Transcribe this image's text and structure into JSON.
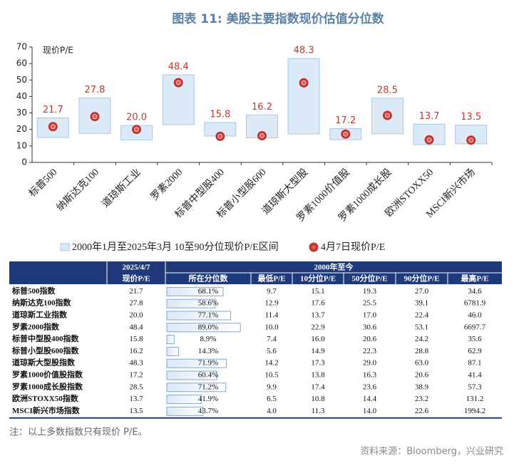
{
  "title": "图表 11: 美股主要指数现价估值分位数",
  "chart_data": {
    "type": "range_bar",
    "y_label": "现价P/E",
    "categories": [
      "标普500",
      "纳斯达克100",
      "道琼斯工业",
      "罗素2000",
      "标普中型股400",
      "标普小型股600",
      "道琼斯大型股",
      "罗素1000价值股",
      "罗素1000成长股",
      "欧洲STOXX50",
      "MSCI新兴市场"
    ],
    "series": [
      {
        "name": "2000年1月至2025年3月 10至90分位现价P/E区间",
        "color": "#dce9f7",
        "stroke": "#a9c7e8",
        "low": [
          15.1,
          17.6,
          13.7,
          22.9,
          16.0,
          14.9,
          17.3,
          13.8,
          17.4,
          10.8,
          11.3
        ],
        "high": [
          27.0,
          39.1,
          22.4,
          53.1,
          24.2,
          28.8,
          63.0,
          20.6,
          38.9,
          23.2,
          22.6
        ]
      },
      {
        "name": "4月7日现价P/E",
        "color": "#c0392b",
        "values": [
          21.7,
          27.8,
          20.0,
          48.4,
          15.8,
          16.2,
          48.3,
          17.2,
          28.5,
          13.7,
          13.5
        ],
        "value_labels": [
          "21.7",
          "27.8",
          "20.0",
          "48.4",
          "15.8",
          "16.2",
          "48.3",
          "17.2",
          "28.5",
          "13.7",
          "13.5"
        ]
      }
    ],
    "ylim": [
      0,
      70
    ],
    "yticks": [
      0,
      10,
      20,
      30,
      40,
      50,
      60,
      70
    ]
  },
  "table": {
    "header": {
      "row1": [
        "2025/4/7",
        "2000年至今"
      ],
      "row2": [
        "现价P/E",
        "所在分位数",
        "最低P/E",
        "10分位P/E",
        "50分位P/E",
        "90分位P/E",
        "最高P/E"
      ]
    },
    "rows": [
      [
        "标普500指数",
        "21.7",
        {
          "value": 68.1,
          "label": "68.1%"
        },
        "9.7",
        "15.1",
        "19.3",
        "27.0",
        "34.6"
      ],
      [
        "纳斯达克100指数",
        "27.8",
        {
          "value": 58.6,
          "label": "58.6%"
        },
        "12.9",
        "17.6",
        "25.5",
        "39.1",
        "6781.9"
      ],
      [
        "道琼斯工业指数",
        "20.0",
        {
          "value": 77.1,
          "label": "77.1%"
        },
        "11.4",
        "13.7",
        "17.0",
        "22.4",
        "46.0"
      ],
      [
        "罗素2000指数",
        "48.4",
        {
          "value": 89.0,
          "label": "89.0%"
        },
        "10.0",
        "22.9",
        "30.6",
        "53.1",
        "6697.7"
      ],
      [
        "标普中型股400指数",
        "15.8",
        {
          "value": 8.9,
          "label": "8.9%"
        },
        "7.4",
        "16.0",
        "20.6",
        "24.2",
        "35.6"
      ],
      [
        "标普小型股600指数",
        "16.2",
        {
          "value": 14.3,
          "label": "14.3%"
        },
        "5.6",
        "14.9",
        "22.3",
        "28.8",
        "62.9"
      ],
      [
        "道琼斯大型股指数",
        "48.3",
        {
          "value": 71.9,
          "label": "71.9%"
        },
        "14.2",
        "17.3",
        "29.0",
        "63.0",
        "87.1"
      ],
      [
        "罗素1000价值股指数",
        "17.2",
        {
          "value": 60.4,
          "label": "60.4%"
        },
        "10.5",
        "13.8",
        "16.3",
        "20.6",
        "41.4"
      ],
      [
        "罗素1000成长股指数",
        "28.5",
        {
          "value": 71.2,
          "label": "71.2%"
        },
        "9.9",
        "17.4",
        "23.6",
        "38.9",
        "57.3"
      ],
      [
        "欧洲STOXX50指数",
        "13.7",
        {
          "value": 41.9,
          "label": "41.9%"
        },
        "6.5",
        "10.8",
        "14.4",
        "23.2",
        "131.2"
      ],
      [
        "MSCI新兴市场指数",
        "13.5",
        {
          "value": 43.7,
          "label": "43.7%"
        },
        "4.0",
        "11.3",
        "14.0",
        "22.6",
        "1994.2"
      ]
    ]
  },
  "note": "注：以上多数指数只有现价 P/E。",
  "source": "资料来源：Bloomberg，兴业研究"
}
